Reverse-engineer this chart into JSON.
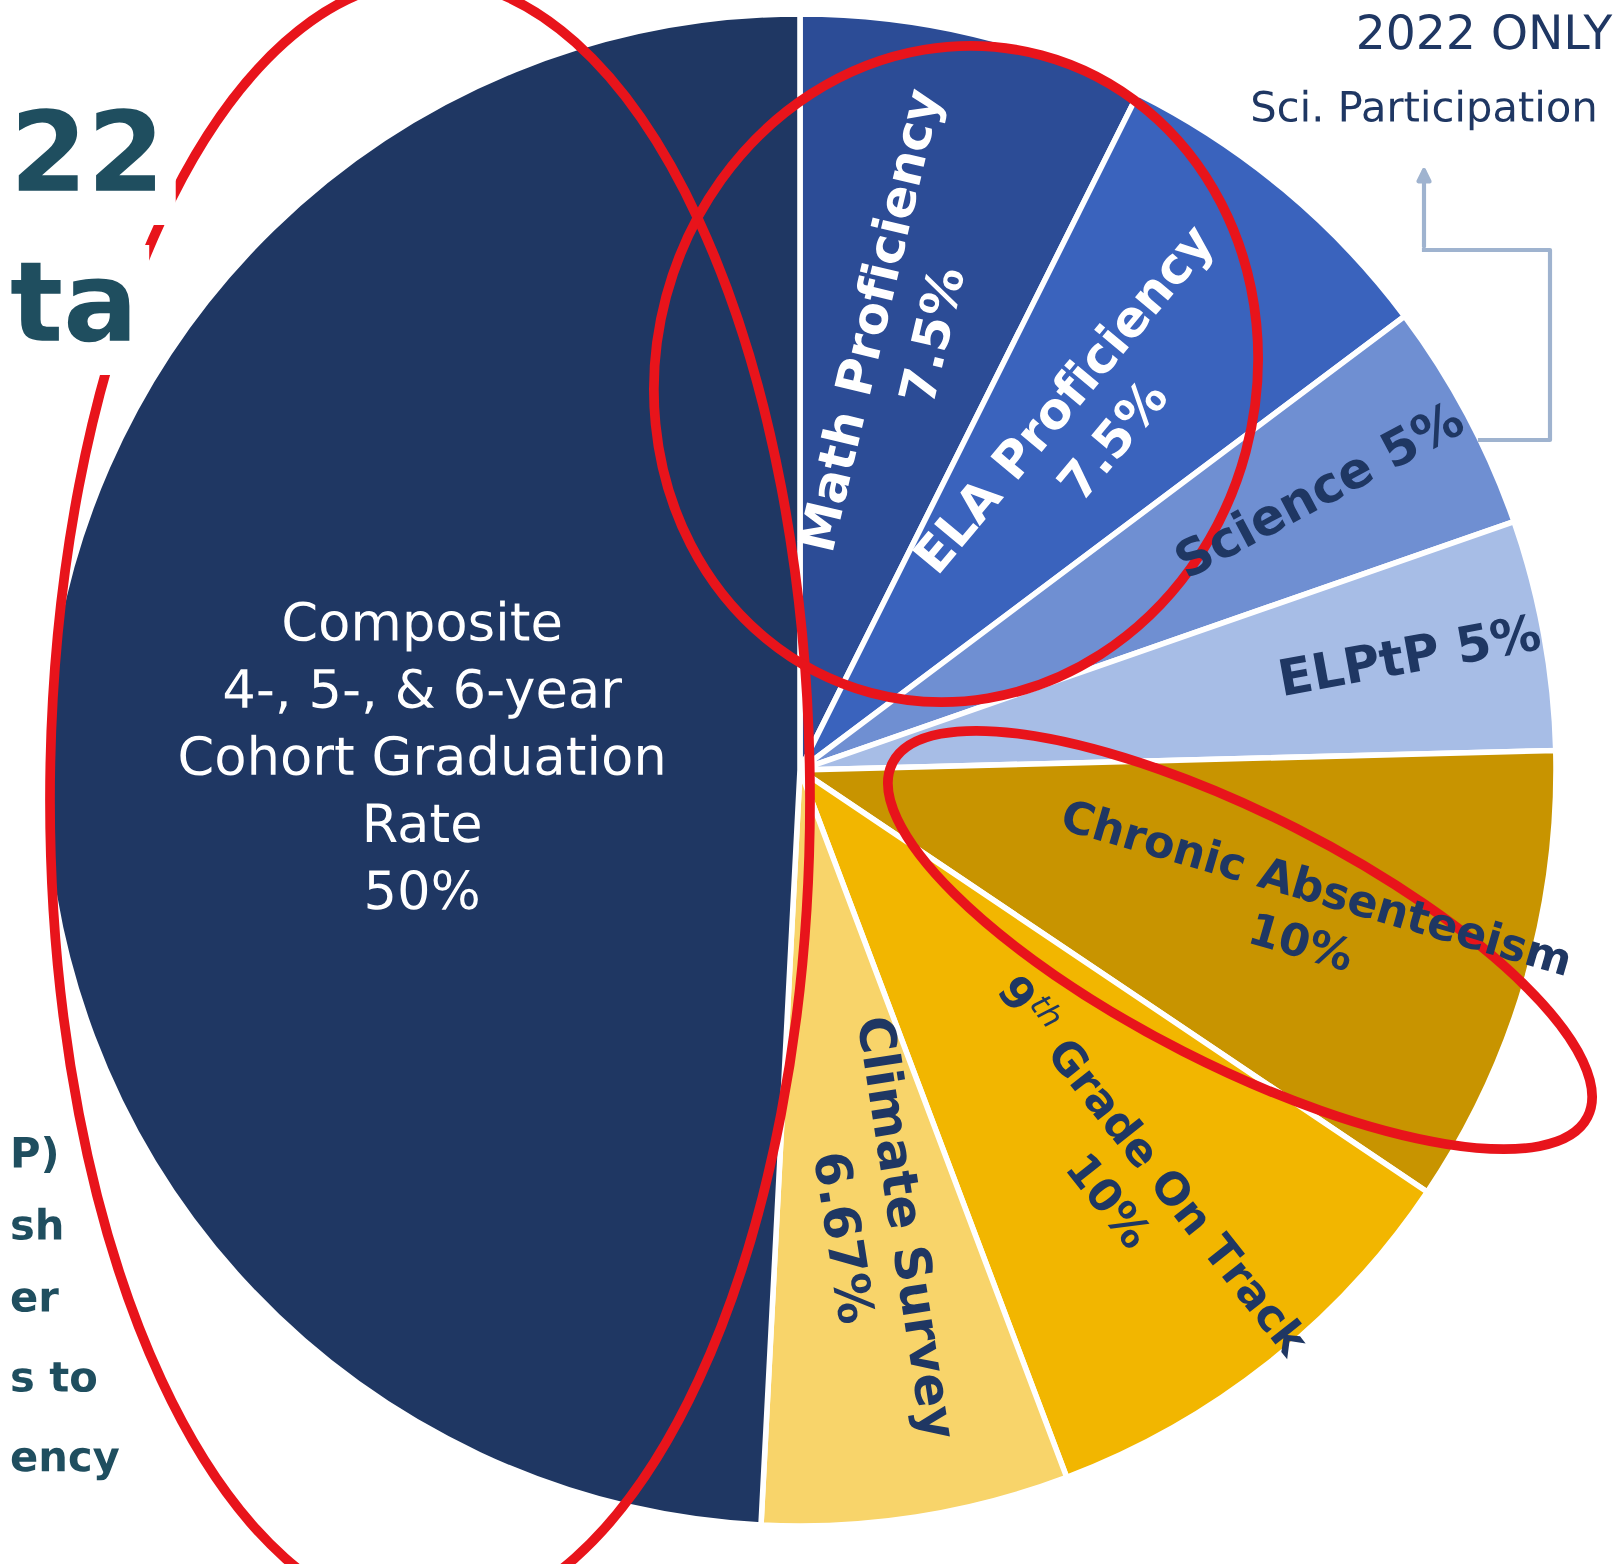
{
  "chart_data": {
    "type": "pie",
    "categories": [
      "Math Proficiency",
      "ELA Proficiency",
      "Science",
      "ELPtP",
      "Chronic Absenteeism",
      "9$^{th}$ Grade On Track",
      "Climate Survey",
      "Composite\n4-, 5-, & 6-year\nCohort Graduation\nRate"
    ],
    "values": [
      7.5,
      7.5,
      5,
      5,
      10,
      10,
      6.67,
      50
    ],
    "value_labels": [
      "7.5%",
      "7.5%",
      "5%",
      "5%",
      "10%",
      "10%",
      "6.67%",
      "50%"
    ],
    "colors": [
      "#2c4c96",
      "#3a63bd",
      "#6f8fd2",
      "#a7bde6",
      "#c89400",
      "#f2b600",
      "#f8d46a",
      "#1f3763"
    ],
    "annotations": [
      "2022 ONLY",
      "Sci. Participation",
      "22",
      "ta",
      "P)",
      "sh",
      "er",
      "s to",
      "ency"
    ]
  }
}
